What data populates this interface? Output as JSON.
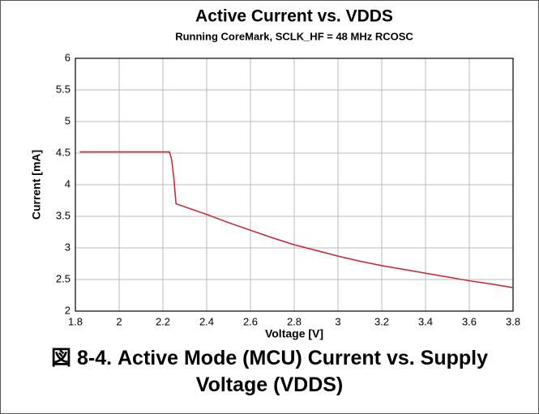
{
  "chart_data": {
    "type": "line",
    "title": "Active Current vs. VDDS",
    "subtitle": "Running CoreMark, SCLK_HF  = 48 MHz RCOSC",
    "x_label": "Voltage [V]",
    "y_label": "Current [mA]",
    "caption": "図 8-4. Active Mode (MCU) Current vs. Supply Voltage (VDDS)",
    "x": [
      1.82,
      2.0,
      2.2,
      2.23,
      2.24,
      2.25,
      2.26,
      2.3,
      2.4,
      2.5,
      2.6,
      2.7,
      2.8,
      2.9,
      3.0,
      3.1,
      3.2,
      3.3,
      3.4,
      3.5,
      3.6,
      3.7,
      3.8
    ],
    "values": [
      4.52,
      4.52,
      4.52,
      4.52,
      4.4,
      4.1,
      3.7,
      3.65,
      3.53,
      3.4,
      3.28,
      3.16,
      3.05,
      2.96,
      2.87,
      2.79,
      2.72,
      2.66,
      2.6,
      2.54,
      2.48,
      2.43,
      2.37
    ],
    "color": "#d0202a",
    "xlim": [
      1.8,
      3.8
    ],
    "xticks": [
      1.8,
      2,
      2.2,
      2.4,
      2.6,
      2.8,
      3,
      3.2,
      3.4,
      3.6,
      3.8
    ],
    "ylim": [
      2,
      6
    ],
    "yticks": [
      2,
      2.5,
      3,
      3.5,
      4,
      4.5,
      5,
      5.5,
      6
    ],
    "grid": true
  }
}
